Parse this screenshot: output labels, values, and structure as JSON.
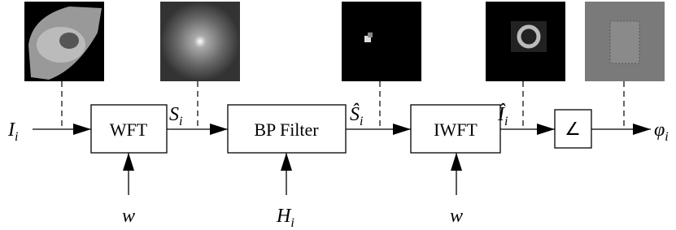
{
  "nodes": [
    {
      "label": "WFT"
    },
    {
      "label": "BP Filter"
    },
    {
      "label": "IWFT"
    },
    {
      "label": "∠"
    }
  ],
  "signals": [
    {
      "base": "I",
      "sub": "i"
    },
    {
      "base": "S",
      "sub": "i"
    },
    {
      "base": "Ŝ",
      "sub": "i"
    },
    {
      "base": "Î",
      "sub": "i"
    },
    {
      "base": "φ",
      "sub": "i"
    }
  ],
  "parameters": [
    {
      "base": "w"
    },
    {
      "base": "H",
      "sub": "i"
    },
    {
      "base": "w"
    }
  ]
}
